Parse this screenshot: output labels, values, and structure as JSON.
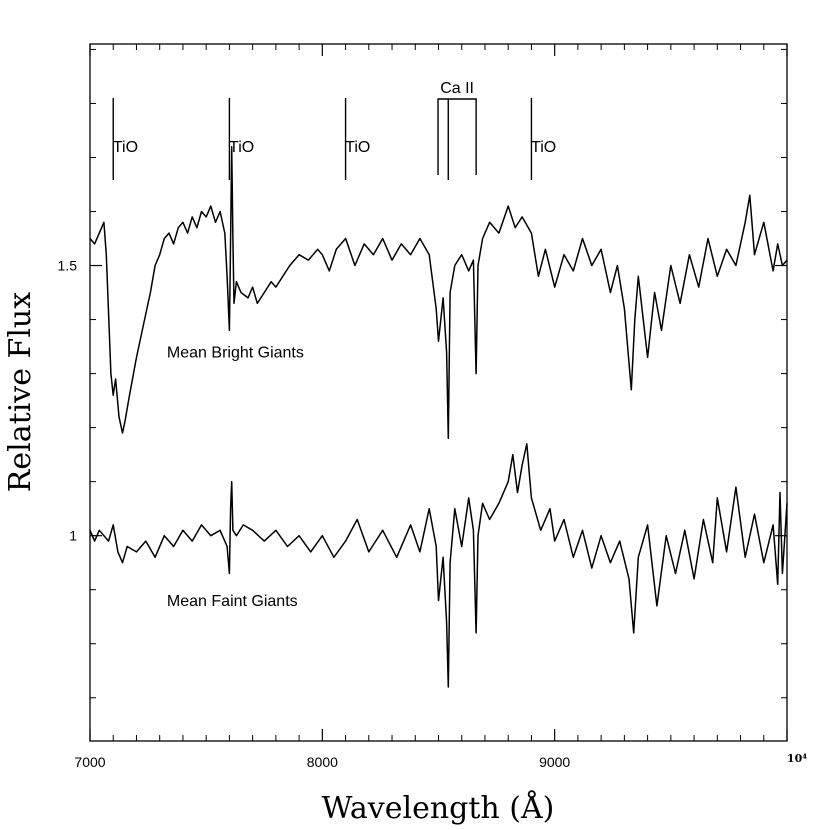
{
  "chart_data": {
    "type": "line",
    "xlabel": "Wavelength (Å)",
    "ylabel": "Relative Flux",
    "xlim": [
      7000,
      10000
    ],
    "ylim": [
      0.62,
      1.91
    ],
    "x_ticks": [
      {
        "value": 7000,
        "label": "7000"
      },
      {
        "value": 8000,
        "label": "8000"
      },
      {
        "value": 9000,
        "label": "9000"
      },
      {
        "value": 10000,
        "label": "10⁴"
      }
    ],
    "y_ticks": [
      {
        "value": 1.0,
        "label": "1"
      },
      {
        "value": 1.5,
        "label": "1.5"
      }
    ],
    "grid": false,
    "series": [
      {
        "name": "Mean Bright Giants",
        "x": [
          7000,
          7020,
          7040,
          7060,
          7070,
          7080,
          7090,
          7100,
          7110,
          7125,
          7140,
          7150,
          7170,
          7200,
          7230,
          7260,
          7280,
          7300,
          7320,
          7340,
          7360,
          7380,
          7400,
          7420,
          7440,
          7460,
          7480,
          7500,
          7520,
          7540,
          7560,
          7580,
          7590,
          7600,
          7605,
          7610,
          7615,
          7620,
          7630,
          7650,
          7680,
          7700,
          7720,
          7750,
          7780,
          7800,
          7830,
          7860,
          7900,
          7940,
          7980,
          8000,
          8030,
          8060,
          8100,
          8140,
          8180,
          8220,
          8260,
          8300,
          8340,
          8380,
          8420,
          8460,
          8490,
          8500,
          8520,
          8535,
          8542,
          8550,
          8570,
          8600,
          8630,
          8650,
          8662,
          8670,
          8690,
          8720,
          8760,
          8800,
          8830,
          8860,
          8900,
          8930,
          8960,
          9000,
          9040,
          9080,
          9120,
          9160,
          9200,
          9240,
          9270,
          9300,
          9330,
          9345,
          9360,
          9400,
          9430,
          9460,
          9500,
          9540,
          9580,
          9620,
          9660,
          9700,
          9740,
          9780,
          9820,
          9840,
          9860,
          9900,
          9940,
          9960,
          9980,
          10000
        ],
        "values": [
          1.55,
          1.54,
          1.56,
          1.58,
          1.52,
          1.41,
          1.3,
          1.26,
          1.29,
          1.22,
          1.19,
          1.21,
          1.26,
          1.33,
          1.39,
          1.45,
          1.5,
          1.52,
          1.55,
          1.56,
          1.54,
          1.57,
          1.58,
          1.56,
          1.59,
          1.57,
          1.6,
          1.59,
          1.61,
          1.58,
          1.6,
          1.56,
          1.48,
          1.38,
          1.55,
          1.72,
          1.55,
          1.43,
          1.47,
          1.45,
          1.44,
          1.46,
          1.43,
          1.45,
          1.47,
          1.46,
          1.48,
          1.5,
          1.52,
          1.51,
          1.53,
          1.52,
          1.49,
          1.53,
          1.55,
          1.5,
          1.54,
          1.52,
          1.55,
          1.51,
          1.54,
          1.52,
          1.55,
          1.52,
          1.42,
          1.36,
          1.44,
          1.34,
          1.18,
          1.45,
          1.5,
          1.52,
          1.49,
          1.51,
          1.3,
          1.5,
          1.55,
          1.58,
          1.56,
          1.61,
          1.57,
          1.59,
          1.56,
          1.48,
          1.53,
          1.46,
          1.52,
          1.49,
          1.55,
          1.5,
          1.53,
          1.45,
          1.5,
          1.42,
          1.27,
          1.4,
          1.48,
          1.33,
          1.45,
          1.38,
          1.5,
          1.43,
          1.52,
          1.46,
          1.55,
          1.48,
          1.53,
          1.5,
          1.58,
          1.63,
          1.52,
          1.58,
          1.49,
          1.54,
          1.5,
          1.51
        ]
      },
      {
        "name": "Mean Faint Giants",
        "x": [
          7000,
          7020,
          7040,
          7060,
          7080,
          7100,
          7120,
          7140,
          7160,
          7200,
          7240,
          7280,
          7320,
          7360,
          7400,
          7440,
          7480,
          7520,
          7560,
          7590,
          7600,
          7605,
          7610,
          7615,
          7630,
          7660,
          7700,
          7750,
          7800,
          7850,
          7900,
          7950,
          8000,
          8050,
          8100,
          8150,
          8200,
          8260,
          8320,
          8380,
          8420,
          8460,
          8490,
          8500,
          8520,
          8535,
          8542,
          8550,
          8570,
          8600,
          8630,
          8650,
          8662,
          8670,
          8690,
          8720,
          8760,
          8800,
          8820,
          8840,
          8860,
          8880,
          8900,
          8940,
          8980,
          9000,
          9040,
          9080,
          9120,
          9160,
          9200,
          9240,
          9280,
          9320,
          9340,
          9360,
          9400,
          9440,
          9480,
          9520,
          9560,
          9600,
          9640,
          9680,
          9700,
          9740,
          9780,
          9820,
          9860,
          9900,
          9940,
          9960,
          9970,
          9980,
          10000
        ],
        "values": [
          1.01,
          0.99,
          1.01,
          1.0,
          0.99,
          1.02,
          0.97,
          0.95,
          0.98,
          0.97,
          0.99,
          0.96,
          1.0,
          0.98,
          1.01,
          0.99,
          1.02,
          1.0,
          1.01,
          0.98,
          0.93,
          1.05,
          1.1,
          1.01,
          1.0,
          1.02,
          1.01,
          0.99,
          1.01,
          0.98,
          1.0,
          0.97,
          1.0,
          0.96,
          0.99,
          1.03,
          0.97,
          1.01,
          0.96,
          1.02,
          0.97,
          1.05,
          0.98,
          0.88,
          0.96,
          0.84,
          0.72,
          0.95,
          1.05,
          0.98,
          1.07,
          1.01,
          0.82,
          1.0,
          1.06,
          1.03,
          1.06,
          1.1,
          1.15,
          1.08,
          1.13,
          1.17,
          1.07,
          1.01,
          1.05,
          0.99,
          1.03,
          0.96,
          1.01,
          0.94,
          1.0,
          0.95,
          0.99,
          0.92,
          0.82,
          0.96,
          1.02,
          0.87,
          1.0,
          0.93,
          1.01,
          0.92,
          1.03,
          0.95,
          1.07,
          0.97,
          1.09,
          0.96,
          1.04,
          0.95,
          1.02,
          0.91,
          1.08,
          0.93,
          1.06
        ]
      }
    ],
    "annotations": [
      {
        "text": "Mean Bright Giants",
        "x": 7400,
        "y": 1.33
      },
      {
        "text": "Mean Faint Giants",
        "x": 7400,
        "y": 0.87
      }
    ],
    "line_markers": [
      {
        "text": "TiO",
        "x": 7100,
        "label_x": 7150
      },
      {
        "text": "TiO",
        "x": 7600,
        "label_x": 7650
      },
      {
        "text": "TiO",
        "x": 8100,
        "label_x": 8150
      },
      {
        "text": "TiO",
        "x": 8900,
        "label_x": 8950
      }
    ],
    "ca_ii": {
      "text": "Ca II",
      "lines": [
        8498,
        8542,
        8662
      ]
    }
  }
}
